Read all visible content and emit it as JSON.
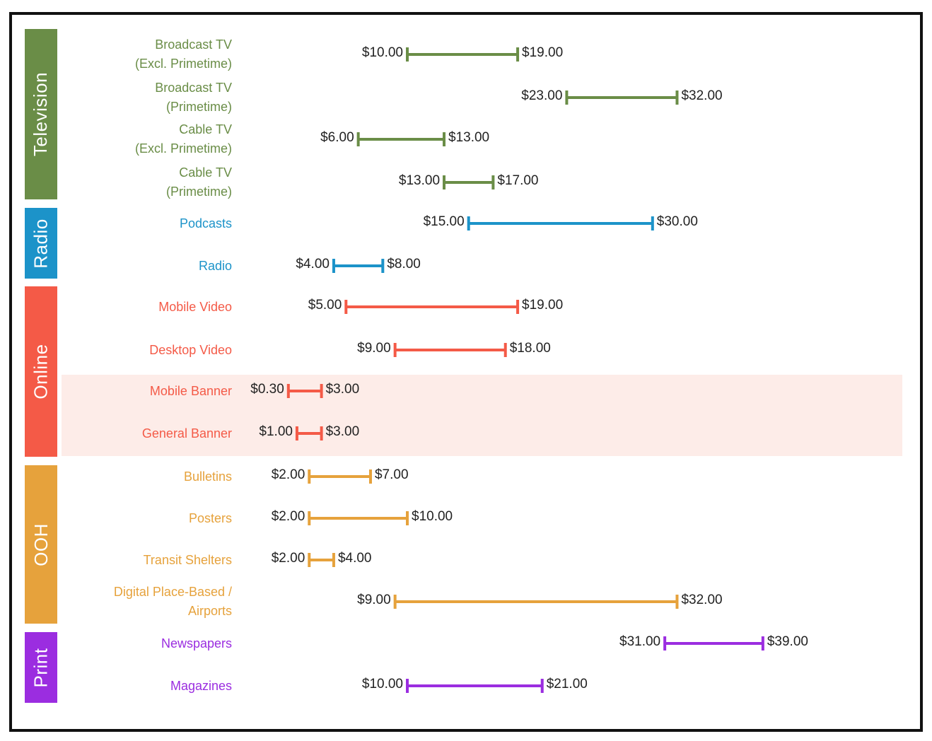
{
  "chart_data": {
    "type": "range",
    "title": "",
    "xlabel": "",
    "ylabel": "",
    "currency_prefix": "$",
    "categories": [
      {
        "name": "Television",
        "color": "#6a8d47",
        "rows": [
          {
            "label": "Broadcast TV\n(Excl. Primetime)",
            "low": 10,
            "high": 19,
            "low_label": "$10.00",
            "high_label": "$19.00"
          },
          {
            "label": "Broadcast TV\n(Primetime)",
            "low": 23,
            "high": 32,
            "low_label": "$23.00",
            "high_label": "$32.00"
          },
          {
            "label": "Cable TV\n(Excl. Primetime)",
            "low": 6,
            "high": 13,
            "low_label": "$6.00",
            "high_label": "$13.00"
          },
          {
            "label": "Cable TV\n(Primetime)",
            "low": 13,
            "high": 17,
            "low_label": "$13.00",
            "high_label": "$17.00"
          }
        ]
      },
      {
        "name": "Radio",
        "color": "#1c93c9",
        "rows": [
          {
            "label": "Podcasts",
            "low": 15,
            "high": 30,
            "low_label": "$15.00",
            "high_label": "$30.00"
          },
          {
            "label": "Radio",
            "low": 4,
            "high": 8,
            "low_label": "$4.00",
            "high_label": "$8.00"
          }
        ]
      },
      {
        "name": "Online",
        "color": "#f45a47",
        "rows": [
          {
            "label": "Mobile Video",
            "low": 5,
            "high": 19,
            "low_label": "$5.00",
            "high_label": "$19.00"
          },
          {
            "label": "Desktop Video",
            "low": 9,
            "high": 18,
            "low_label": "$9.00",
            "high_label": "$18.00"
          },
          {
            "label": "Mobile Banner",
            "low": 0.3,
            "high": 3,
            "low_label": "$0.30",
            "high_label": "$3.00",
            "highlighted": true
          },
          {
            "label": "General Banner",
            "low": 1,
            "high": 3,
            "low_label": "$1.00",
            "high_label": "$3.00",
            "highlighted": true
          }
        ]
      },
      {
        "name": "OOH",
        "color": "#e6a23c",
        "rows": [
          {
            "label": "Bulletins",
            "low": 2,
            "high": 7,
            "low_label": "$2.00",
            "high_label": "$7.00"
          },
          {
            "label": "Posters",
            "low": 2,
            "high": 10,
            "low_label": "$2.00",
            "high_label": "$10.00"
          },
          {
            "label": "Transit Shelters",
            "low": 2,
            "high": 4,
            "low_label": "$2.00",
            "high_label": "$4.00"
          },
          {
            "label": "Digital Place-Based /\nAirports",
            "low": 9,
            "high": 32,
            "low_label": "$9.00",
            "high_label": "$32.00"
          }
        ]
      },
      {
        "name": "Print",
        "color": "#9b2de0",
        "rows": [
          {
            "label": "Newspapers",
            "low": 31,
            "high": 39,
            "low_label": "$31.00",
            "high_label": "$39.00"
          },
          {
            "label": "Magazines",
            "low": 10,
            "high": 21,
            "low_label": "$10.00",
            "high_label": "$21.00"
          }
        ]
      }
    ],
    "xlim": [
      0,
      40
    ],
    "grid": false,
    "legend": "none"
  }
}
